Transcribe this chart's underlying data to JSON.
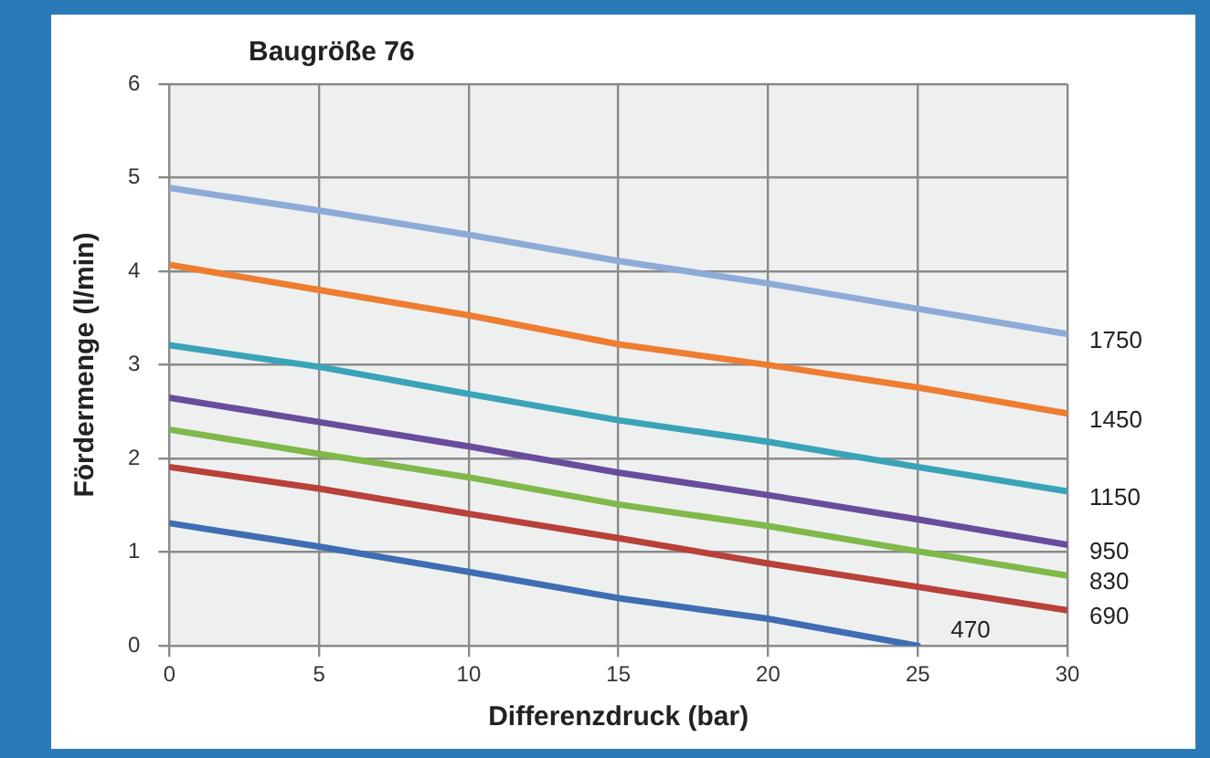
{
  "chart_data": {
    "type": "line",
    "title": "Baugröße 76",
    "xlabel": "Differenzdruck (bar)",
    "ylabel": "Fördermenge (l/min)",
    "x": [
      0,
      5,
      10,
      15,
      20,
      25,
      30
    ],
    "series": [
      {
        "name": "1750",
        "color": "#8eaad6",
        "values": [
          4.89,
          4.65,
          4.39,
          4.11,
          3.87,
          3.6,
          3.33
        ]
      },
      {
        "name": "1450",
        "color": "#ee7d31",
        "values": [
          4.07,
          3.8,
          3.53,
          3.22,
          3.0,
          2.76,
          2.48
        ]
      },
      {
        "name": "1150",
        "color": "#3aa3b8",
        "values": [
          3.21,
          2.98,
          2.69,
          2.41,
          2.18,
          1.91,
          1.65
        ]
      },
      {
        "name": "950",
        "color": "#6a4c9c",
        "values": [
          2.65,
          2.39,
          2.13,
          1.85,
          1.61,
          1.35,
          1.08
        ]
      },
      {
        "name": "830",
        "color": "#80b84a",
        "values": [
          2.31,
          2.05,
          1.8,
          1.51,
          1.28,
          1.01,
          0.75
        ]
      },
      {
        "name": "690",
        "color": "#b8413a",
        "values": [
          1.91,
          1.68,
          1.41,
          1.15,
          0.88,
          0.63,
          0.38
        ]
      },
      {
        "name": "470",
        "color": "#3f6db3",
        "values": [
          1.31,
          1.06,
          0.79,
          0.51,
          0.29,
          0,
          null
        ]
      }
    ],
    "xlim": [
      0,
      30
    ],
    "xticks": [
      0,
      5,
      10,
      15,
      20,
      25,
      30
    ],
    "ylim": [
      0,
      6
    ],
    "yticks": [
      0,
      1,
      2,
      3,
      4,
      5,
      6
    ],
    "grid": true,
    "legend": false,
    "marker": "none",
    "line_style": "solid"
  }
}
